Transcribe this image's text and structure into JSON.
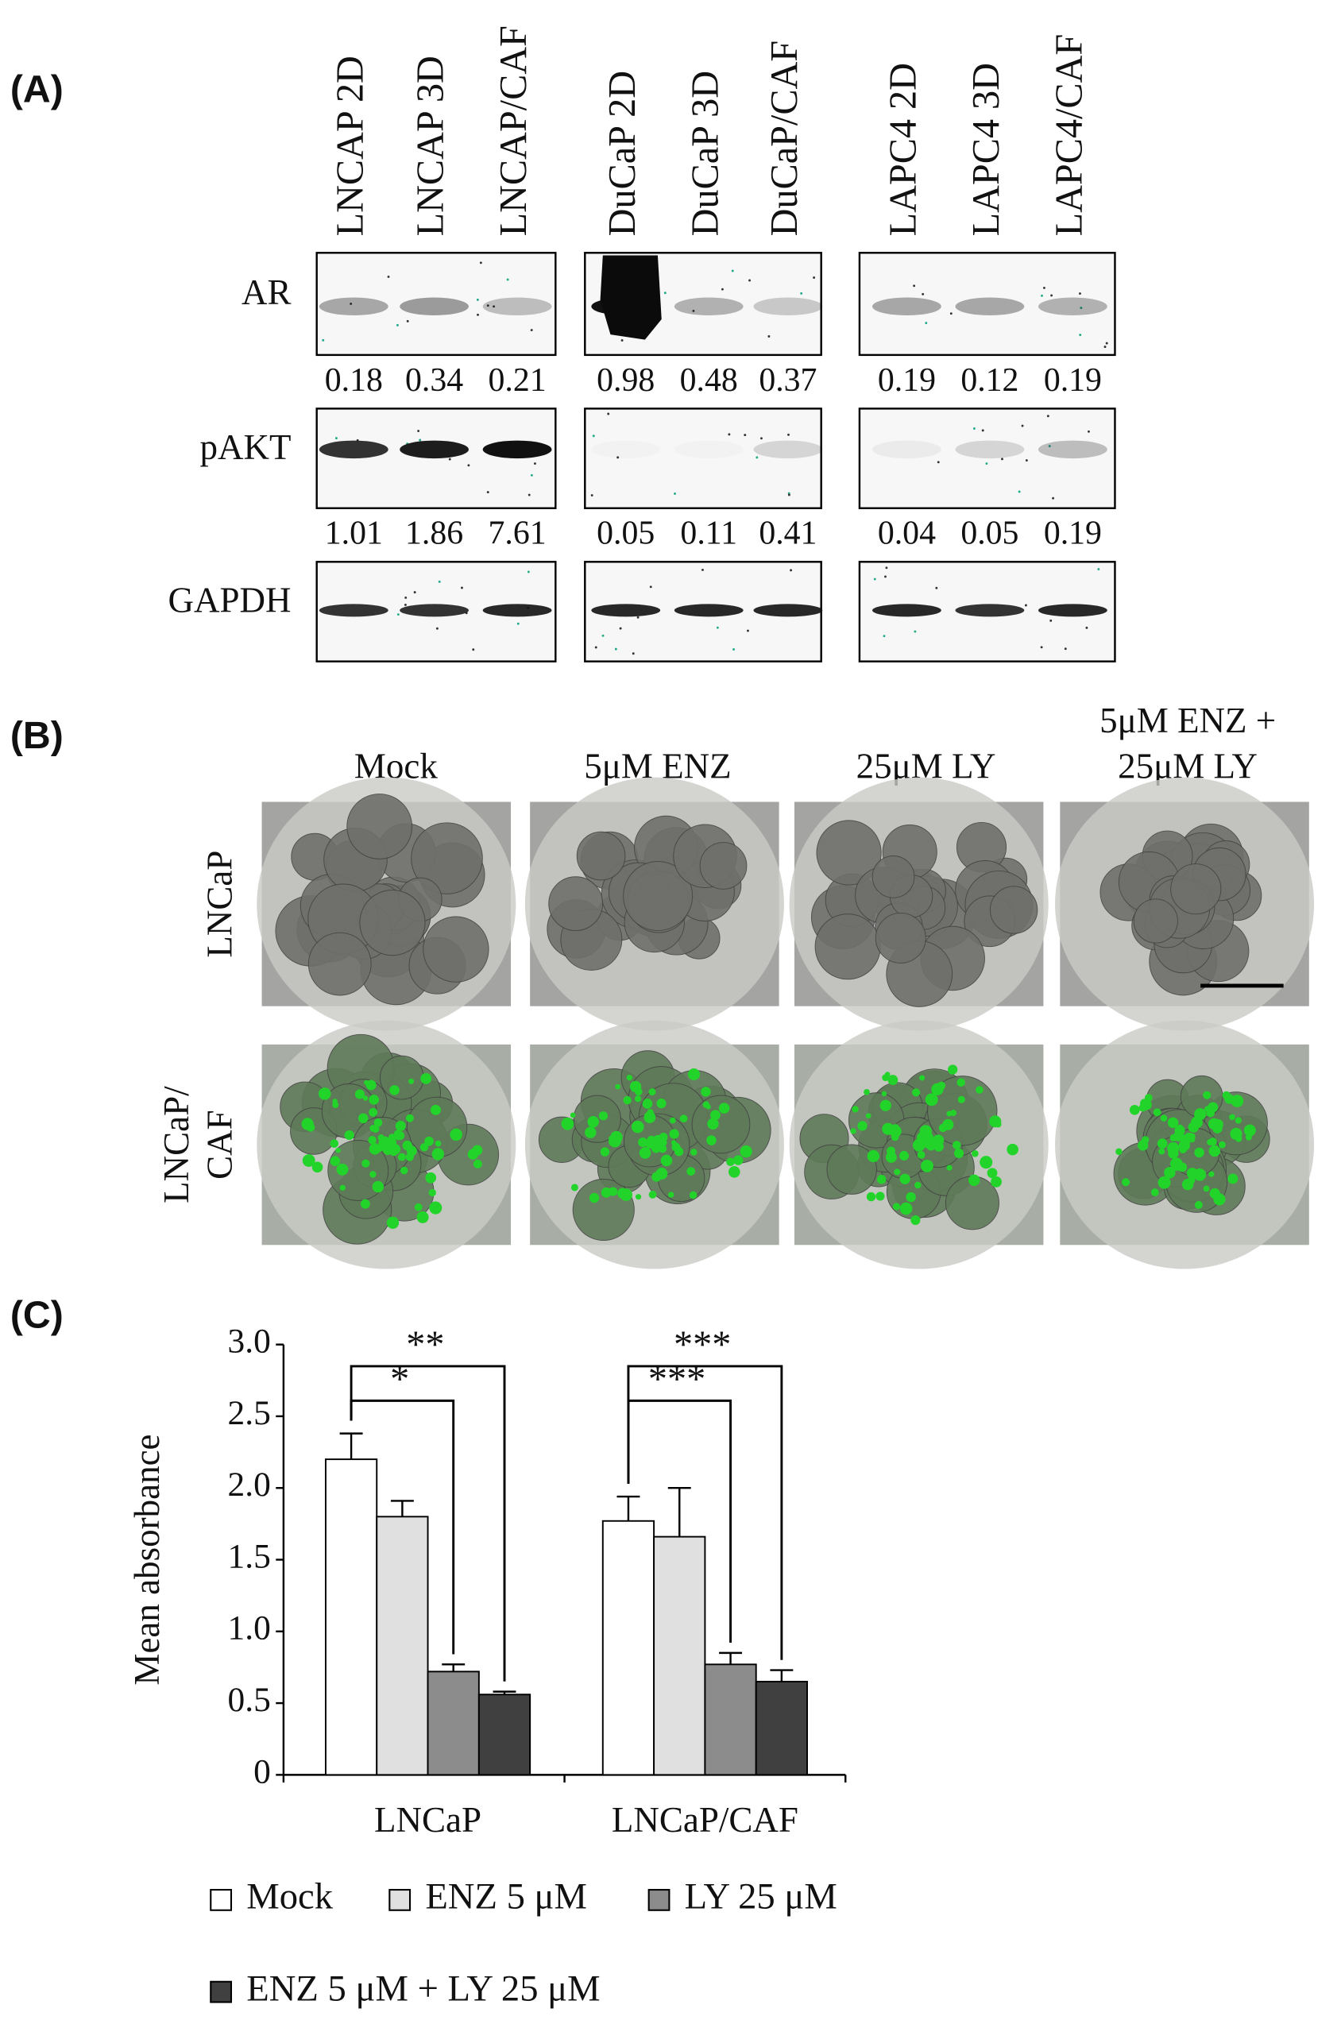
{
  "panel_a": {
    "label": "(A)",
    "groups": [
      [
        "LNCAP 2D",
        "LNCAP 3D",
        "LNCAP/CAF"
      ],
      [
        "DuCaP 2D",
        "DuCaP 3D",
        "DuCaP/CAF"
      ],
      [
        "LAPC4 2D",
        "LAPC4 3D",
        "LAPC4/CAF"
      ]
    ],
    "rows": [
      {
        "label": "AR",
        "quantification": [
          [
            0.18,
            0.34,
            0.21
          ],
          [
            0.98,
            0.48,
            0.37
          ],
          [
            0.19,
            0.12,
            0.19
          ]
        ]
      },
      {
        "label": "pAKT",
        "quantification": [
          [
            1.01,
            1.86,
            7.61
          ],
          [
            0.05,
            0.11,
            0.41
          ],
          [
            0.04,
            0.05,
            0.19
          ]
        ]
      },
      {
        "label": "GAPDH"
      }
    ]
  },
  "panel_b": {
    "label": "(B)",
    "columns": [
      [
        "Mock"
      ],
      [
        "5μM ENZ"
      ],
      [
        "25μM LY"
      ],
      [
        "5μM ENZ +",
        "25μM LY"
      ]
    ],
    "rows": [
      [
        "LNCaP"
      ],
      [
        "LNCaP/",
        "CAF"
      ]
    ]
  },
  "panel_c": {
    "label": "(C)"
  },
  "chart_data": {
    "type": "bar",
    "y_label": "Mean absorbance",
    "categories": [
      "LNCaP",
      "LNCaP/CAF"
    ],
    "series": [
      {
        "name": "Mock",
        "color": "#ffffff",
        "values": [
          2.2,
          1.77
        ],
        "errors": [
          0.18,
          0.17
        ]
      },
      {
        "name": "ENZ 5 μM",
        "color": "#e0e0e0",
        "values": [
          1.8,
          1.66
        ],
        "errors": [
          0.11,
          0.34
        ]
      },
      {
        "name": "LY 25 μM",
        "color": "#8c8c8c",
        "values": [
          0.72,
          0.77
        ],
        "errors": [
          0.05,
          0.08
        ]
      },
      {
        "name": "ENZ 5 μM + LY 25 μM",
        "color": "#404040",
        "values": [
          0.56,
          0.65
        ],
        "errors": [
          0.02,
          0.08
        ]
      }
    ],
    "ylim": [
      0,
      3
    ],
    "yticks": [
      0,
      0.5,
      {
        "value": 1,
        "label": "1.0"
      },
      {
        "value": 1.5,
        "label": "1.5"
      },
      {
        "value": 2,
        "label": "2.0"
      },
      {
        "value": 2.5,
        "label": "2.5"
      },
      {
        "value": 3,
        "label": "3.0"
      }
    ],
    "annotations": [
      {
        "label": "**",
        "category": 0,
        "from_series": 0,
        "to_series": 3
      },
      {
        "label": "*",
        "category": 0,
        "from_series": 0,
        "to_series": 2
      },
      {
        "label": "***",
        "category": 1,
        "from_series": 0,
        "to_series": 3
      },
      {
        "label": "***",
        "category": 1,
        "from_series": 0,
        "to_series": 2
      }
    ]
  }
}
